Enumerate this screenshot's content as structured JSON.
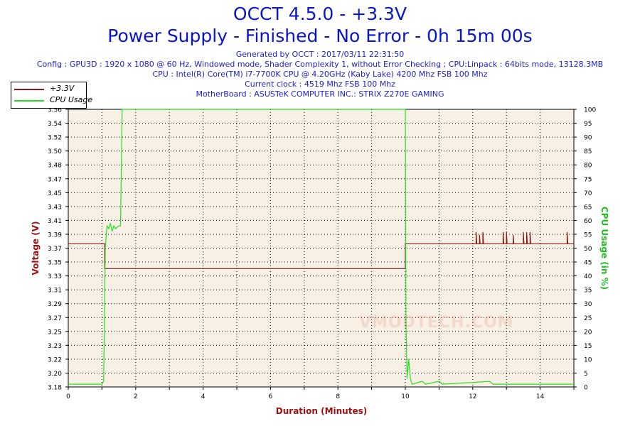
{
  "header": {
    "title": "OCCT 4.5.0 - +3.3V",
    "subtitle": "Power Supply - Finished - No Error - 0h 15m 00s",
    "info_lines": [
      "Generated by OCCT : 2017/03/11 22:31:50",
      "Config : GPU3D : 1920 x 1080 @ 60 Hz, Windowed mode, Shader Complexity 1, without Error Checking ; CPU:Linpack : 64bits mode, 13128.3MB",
      "CPU : Intel(R) Core(TM) i7-7700K CPU @ 4.20GHz (Kaby Lake) 4200 Mhz FSB 100 Mhz",
      "Current clock : 4519 Mhz FSB 100 Mhz",
      "MotherBoard : ASUSTeK COMPUTER INC.: STRIX Z270E GAMING"
    ]
  },
  "watermark": "VMODTECH.COM",
  "colors": {
    "plot_bg": "#f8f0e4",
    "voltage": "#8b1a1a",
    "cpu": "#22e022",
    "voltage_axis": "#a01010",
    "cpu_axis": "#20c020",
    "axis_title": "#a01010"
  },
  "chart_data": {
    "type": "line",
    "xlabel": "Duration (Minutes)",
    "ylabel_left": "Voltage (V)",
    "ylabel_right": "CPU Usage (in %)",
    "xlim": [
      0,
      15
    ],
    "x_ticks": [
      0,
      2,
      4,
      6,
      8,
      10,
      12,
      14
    ],
    "ylim_left": [
      3.18,
      3.56
    ],
    "y_left_ticks": [
      "3.18",
      "3.20",
      "3.22",
      "3.23",
      "3.25",
      "3.27",
      "3.29",
      "3.31",
      "3.33",
      "3.35",
      "3.37",
      "3.39",
      "3.41",
      "3.43",
      "3.45",
      "3.47",
      "3.48",
      "3.50",
      "3.52",
      "3.54",
      "3.56"
    ],
    "ylim_right": [
      0,
      100
    ],
    "y_right_ticks": [
      0,
      5,
      10,
      15,
      20,
      25,
      30,
      35,
      40,
      45,
      50,
      55,
      60,
      65,
      70,
      75,
      80,
      85,
      90,
      95,
      100
    ],
    "grid": true,
    "legend_position": "top-left",
    "series": [
      {
        "name": "+3.3V",
        "axis": "left",
        "points": [
          [
            0,
            3.376
          ],
          [
            1.08,
            3.376
          ],
          [
            1.08,
            3.342
          ],
          [
            10.0,
            3.342
          ],
          [
            10.0,
            3.376
          ],
          [
            12.1,
            3.376
          ],
          [
            12.1,
            3.392
          ],
          [
            12.12,
            3.376
          ],
          [
            12.2,
            3.376
          ],
          [
            12.2,
            3.388
          ],
          [
            12.22,
            3.376
          ],
          [
            12.3,
            3.376
          ],
          [
            12.3,
            3.392
          ],
          [
            12.32,
            3.376
          ],
          [
            12.9,
            3.376
          ],
          [
            12.9,
            3.392
          ],
          [
            12.92,
            3.376
          ],
          [
            13.0,
            3.376
          ],
          [
            13.0,
            3.392
          ],
          [
            13.02,
            3.376
          ],
          [
            13.2,
            3.376
          ],
          [
            13.2,
            3.388
          ],
          [
            13.22,
            3.376
          ],
          [
            13.5,
            3.376
          ],
          [
            13.5,
            3.392
          ],
          [
            13.52,
            3.376
          ],
          [
            13.6,
            3.376
          ],
          [
            13.6,
            3.392
          ],
          [
            13.62,
            3.376
          ],
          [
            13.7,
            3.376
          ],
          [
            13.7,
            3.392
          ],
          [
            13.72,
            3.376
          ],
          [
            14.8,
            3.376
          ],
          [
            14.8,
            3.392
          ],
          [
            14.82,
            3.376
          ],
          [
            15.0,
            3.376
          ]
        ]
      },
      {
        "name": "CPU Usage",
        "axis": "right",
        "points": [
          [
            0,
            1
          ],
          [
            1.0,
            1
          ],
          [
            1.05,
            2
          ],
          [
            1.1,
            50
          ],
          [
            1.15,
            58
          ],
          [
            1.2,
            57
          ],
          [
            1.25,
            59
          ],
          [
            1.3,
            56
          ],
          [
            1.35,
            58
          ],
          [
            1.4,
            57
          ],
          [
            1.5,
            58
          ],
          [
            1.55,
            58
          ],
          [
            1.6,
            100
          ],
          [
            10.0,
            100
          ],
          [
            10.02,
            25
          ],
          [
            10.05,
            3
          ],
          [
            10.1,
            10
          ],
          [
            10.15,
            3
          ],
          [
            10.2,
            1
          ],
          [
            10.5,
            2
          ],
          [
            10.6,
            1
          ],
          [
            11.0,
            2
          ],
          [
            11.1,
            1
          ],
          [
            12.5,
            2
          ],
          [
            12.6,
            1
          ],
          [
            15.0,
            1
          ]
        ]
      }
    ]
  }
}
